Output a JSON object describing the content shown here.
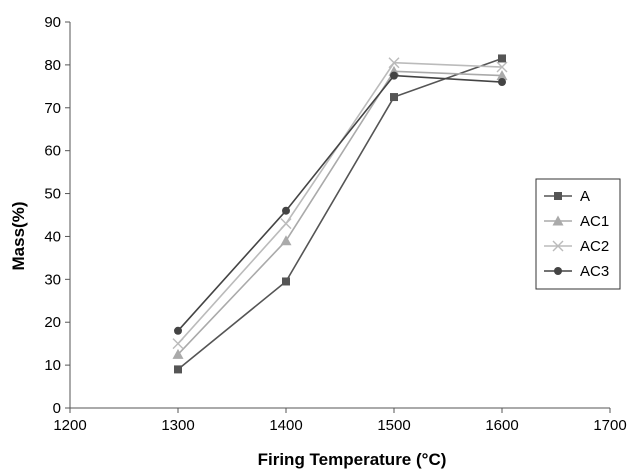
{
  "chart_data": {
    "type": "line",
    "title": "",
    "xlabel": "Firing Temperature (°C)",
    "ylabel": "Mass(%)",
    "xlim": [
      1200,
      1700
    ],
    "ylim": [
      0,
      90
    ],
    "xticks": [
      1200,
      1300,
      1400,
      1500,
      1600,
      1700
    ],
    "yticks": [
      0,
      10,
      20,
      30,
      40,
      50,
      60,
      70,
      80,
      90
    ],
    "grid": false,
    "legend_position": "right",
    "x": [
      1300,
      1400,
      1500,
      1600
    ],
    "series": [
      {
        "name": "A",
        "values": [
          9,
          29.5,
          72.5,
          81.5
        ],
        "marker": "square",
        "color": "#555555"
      },
      {
        "name": "AC1",
        "values": [
          12.5,
          39,
          78.5,
          77.5
        ],
        "marker": "triangle",
        "color": "#aaaaaa"
      },
      {
        "name": "AC2",
        "values": [
          15,
          43,
          80.5,
          79.5
        ],
        "marker": "x",
        "color": "#bbbbbb"
      },
      {
        "name": "AC3",
        "values": [
          18,
          46,
          77.5,
          76
        ],
        "marker": "circle",
        "color": "#444444"
      }
    ]
  }
}
